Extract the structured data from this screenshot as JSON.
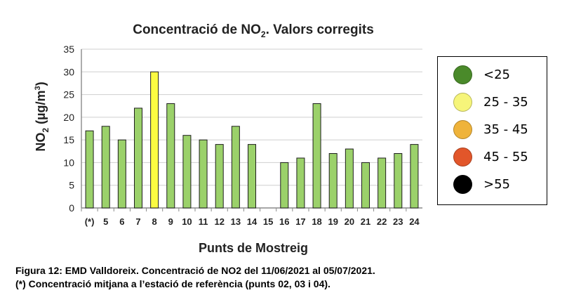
{
  "chart_data": {
    "type": "bar",
    "title_main": "Concentració de NO",
    "title_sub": "2",
    "title_rest": ". Valors corregits",
    "ylabel_main": "NO",
    "ylabel_sub": "2",
    "ylabel_rest": " (µg/m",
    "ylabel_sup": "3",
    "ylabel_end": ")",
    "xlabel": "Punts de Mostreig",
    "ylim": [
      0,
      35
    ],
    "yticks": [
      "0",
      "5",
      "10",
      "15",
      "20",
      "25",
      "30",
      "35"
    ],
    "grid": true,
    "categories": [
      "(*)",
      "5",
      "6",
      "7",
      "8",
      "9",
      "10",
      "11",
      "12",
      "13",
      "14",
      "15",
      "16",
      "17",
      "18",
      "19",
      "20",
      "21",
      "22",
      "23",
      "24"
    ],
    "values": [
      17,
      18,
      15,
      22,
      30,
      23,
      16,
      15,
      14,
      18,
      14,
      null,
      10,
      11,
      23,
      12,
      13,
      10,
      11,
      12,
      14
    ],
    "legend_placement": "right"
  },
  "legend": [
    {
      "label": "<25",
      "color": "#4a8a2a"
    },
    {
      "label": "25 - 35",
      "color": "#f6f57a"
    },
    {
      "label": "35 - 45",
      "color": "#efb33a"
    },
    {
      "label": "45 - 55",
      "color": "#e2562a"
    },
    {
      "label": ">55",
      "color": "#000000"
    }
  ],
  "bar_colors": {
    "below_25": "#9bd16a",
    "from_25_to_35": "#fbfb42"
  },
  "caption": {
    "line1": "Figura 12: EMD Valldoreix. Concentració de NO2 del 11/06/2021 al 05/07/2021.",
    "line2": "(*) Concentració mitjana a l’estació de referència (punts 02, 03 i 04)."
  }
}
